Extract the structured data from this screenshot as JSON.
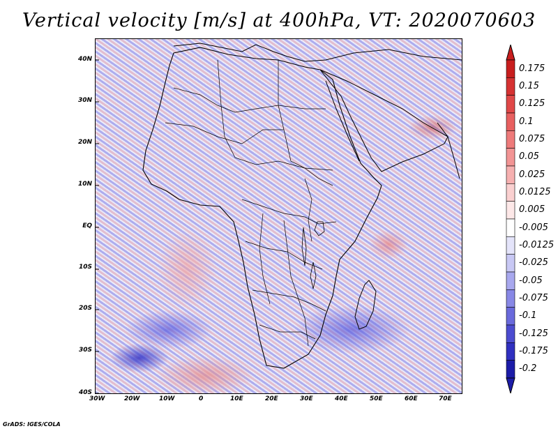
{
  "title": "Vertical velocity [m/s] at 400hPa, VT: 2020070603",
  "credit": "GrADS: IGES/COLA",
  "lat_ticks": [
    "40N",
    "30N",
    "20N",
    "10N",
    "EQ",
    "10S",
    "20S",
    "30S",
    "40S"
  ],
  "lon_ticks": [
    "30W",
    "20W",
    "10W",
    "0",
    "10E",
    "20E",
    "30E",
    "40E",
    "50E",
    "60E",
    "70E"
  ],
  "colorbar": {
    "labels": [
      "0.175",
      "0.15",
      "0.125",
      "0.1",
      "0.075",
      "0.05",
      "0.025",
      "0.0125",
      "0.005",
      "-0.005",
      "-0.0125",
      "-0.025",
      "-0.05",
      "-0.075",
      "-0.1",
      "-0.125",
      "-0.175",
      "-0.2"
    ],
    "colors": [
      "#c81e1e",
      "#d63232",
      "#e04848",
      "#e86060",
      "#ee7a7a",
      "#f29494",
      "#f6b0b0",
      "#fad0d0",
      "#fde8e8",
      "#ffffff",
      "#e4e4fa",
      "#c8c8f4",
      "#a8a8ee",
      "#8888e6",
      "#6a6adc",
      "#4c4cd0",
      "#3030c0",
      "#1c1ca8"
    ]
  }
}
